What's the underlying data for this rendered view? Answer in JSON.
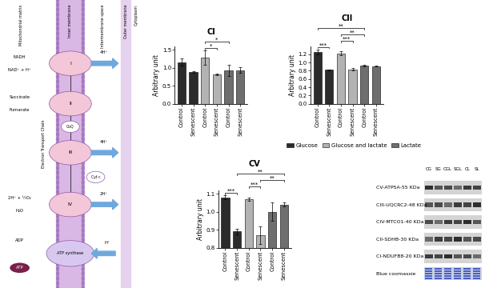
{
  "diagram": {
    "regions": [
      "Mitochondrial matrix",
      "Inner membrane",
      "Intermembrane space",
      "Outer membrane",
      "Cytoplasm"
    ],
    "title": "Electron Transport Chain",
    "complexes": [
      {
        "label": "I",
        "substrate": "NADH",
        "product": "NAD⁺ + H⁺",
        "pumped": "4H⁺"
      },
      {
        "label": "II",
        "substrate": "Succinate",
        "product": "Fumarate"
      },
      {
        "label": "III",
        "pumped": "4H⁺"
      },
      {
        "label": "IV",
        "substrate": "2H⁺ + ½O₂",
        "product": "H₂O",
        "pumped": "2H⁺"
      }
    ],
    "carriers": [
      "CoQ",
      "Cyt c"
    ],
    "atp_synthase": {
      "label": "ATP synthase",
      "substrate": "ADP",
      "product": "ATP",
      "proton": "H⁺"
    }
  },
  "chart_data": [
    {
      "type": "bar",
      "title": "CI",
      "y_label": "Arbitrary unit",
      "categories": [
        "Control",
        "Senescent",
        "Control",
        "Senescent",
        "Control",
        "Senescent"
      ],
      "series": [
        {
          "name": "Glucose",
          "color": "#2b2b2b",
          "values": [
            1.15,
            0.88,
            null,
            null,
            null,
            null
          ],
          "errors": [
            0.1,
            0.02,
            null,
            null,
            null,
            null
          ]
        },
        {
          "name": "Glucose and lactate",
          "color": "#b3b3b3",
          "values": [
            null,
            null,
            1.27,
            0.82,
            null,
            null
          ],
          "errors": [
            null,
            null,
            0.2,
            0.02,
            null,
            null
          ]
        },
        {
          "name": "Lactate",
          "color": "#6e6e6e",
          "values": [
            null,
            null,
            null,
            null,
            0.92,
            0.93
          ],
          "errors": [
            null,
            null,
            null,
            null,
            0.15,
            0.08
          ]
        }
      ],
      "ylim": [
        0,
        1.6
      ],
      "yticks": [
        {
          "value": 0,
          "label": "0.0"
        },
        0.5,
        {
          "value": 1,
          "label": "1.0"
        },
        1.5
      ],
      "significance": [
        {
          "from": 2,
          "to": 3,
          "label": "*"
        },
        {
          "from": 2,
          "to": 4,
          "label": "*"
        }
      ]
    },
    {
      "type": "bar",
      "title": "CII",
      "y_label": "Arbitrary unit",
      "categories": [
        "Control",
        "Senescent",
        "Control",
        "Senescent",
        "Control",
        "Senescent"
      ],
      "series": [
        {
          "name": "Glucose",
          "color": "#2b2b2b",
          "values": [
            1.25,
            0.82,
            null,
            null,
            null,
            null
          ],
          "errors": [
            0.06,
            0.01,
            null,
            null,
            null,
            null
          ]
        },
        {
          "name": "Glucose and lactate",
          "color": "#b3b3b3",
          "values": [
            null,
            null,
            1.22,
            0.83,
            null,
            null
          ],
          "errors": [
            null,
            null,
            0.05,
            0.03,
            null,
            null
          ]
        },
        {
          "name": "Lactate",
          "color": "#6e6e6e",
          "values": [
            null,
            null,
            null,
            null,
            0.92,
            0.91
          ],
          "errors": [
            null,
            null,
            null,
            null,
            0.02,
            0.01
          ]
        }
      ],
      "ylim": [
        0,
        1.4
      ],
      "yticks": [
        {
          "value": 0,
          "label": "0.0"
        },
        0.2,
        0.4,
        0.6,
        0.8,
        {
          "value": 1,
          "label": "1.0"
        },
        1.2
      ],
      "legend": "lower center",
      "significance": [
        {
          "from": 0,
          "to": 1,
          "label": "***"
        },
        {
          "from": 2,
          "to": 3,
          "label": "***"
        },
        {
          "from": 2,
          "to": 4,
          "label": "**"
        },
        {
          "from": 0,
          "to": 4,
          "label": "**"
        }
      ]
    },
    {
      "type": "bar",
      "title": "CV",
      "y_label": "Arbitrary unit",
      "categories": [
        "Control",
        "Senescent",
        "Control",
        "Senescent",
        "Control",
        "Senescent"
      ],
      "series": [
        {
          "name": "Glucose",
          "color": "#2b2b2b",
          "values": [
            1.08,
            0.89,
            null,
            null,
            null,
            null
          ],
          "errors": [
            0.01,
            0.015,
            null,
            null,
            null,
            null
          ]
        },
        {
          "name": "Glucose and lactate",
          "color": "#b3b3b3",
          "values": [
            null,
            null,
            1.07,
            0.87,
            null,
            null
          ],
          "errors": [
            null,
            null,
            0.01,
            0.05,
            null,
            null
          ]
        },
        {
          "name": "Lactate",
          "color": "#6e6e6e",
          "values": [
            null,
            null,
            null,
            null,
            1.0,
            1.04
          ],
          "errors": [
            null,
            null,
            null,
            null,
            0.05,
            0.01
          ]
        }
      ],
      "ylim": [
        0.8,
        1.12
      ],
      "yticks": [
        0.8,
        0.9,
        {
          "value": 1,
          "label": "1.0"
        },
        1.1
      ],
      "significance": [
        {
          "from": 0,
          "to": 1,
          "label": "***"
        },
        {
          "from": 2,
          "to": 3,
          "label": "***"
        },
        {
          "from": 3,
          "to": 5,
          "label": "**"
        },
        {
          "from": 1,
          "to": 5,
          "label": "**"
        }
      ]
    }
  ],
  "blot": {
    "lanes": [
      "CG",
      "SG",
      "CGL",
      "SGL",
      "CL",
      "SL"
    ],
    "rows": [
      "CV-ATP5A-55 KDa",
      "CIII-UQCRC2-48 KDa",
      "CIV-MTCO1-40 KDa",
      "CII-SDHB-30 KDa",
      "CI-NDUFB8-20 KDa",
      "Blue coomassie"
    ]
  }
}
